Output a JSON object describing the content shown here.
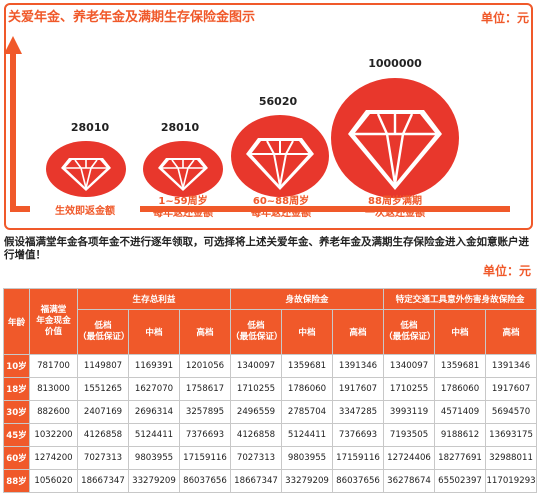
{
  "top": {
    "title": "关爱年金、养老年金及满期生存保险金图示",
    "unit": "单位：元",
    "items": [
      {
        "amount": "28010",
        "caption": "生效即返金额"
      },
      {
        "amount": "28010",
        "caption": "1~59周岁\n每年返还金额"
      },
      {
        "amount": "56020",
        "caption": "60~88周岁\n每年返还金额"
      },
      {
        "amount": "1000000",
        "caption": "88周岁满期\n一次返还金额"
      }
    ],
    "colors": {
      "accent": "#f0592a"
    }
  },
  "note": "假设福满堂年金各项年金不进行逐年领取，可选择将上述关爱年金、养老年金及满期生存保险金进入金如意账户进行增值！",
  "unit_mid": "单位：元",
  "table": {
    "h_age": "年龄",
    "h_cash": "福满堂\n年金现金\n价值",
    "h_total": "生存总利益",
    "h_death": "身故保险金",
    "h_accident": "特定交通工具意外伤害身故保险金",
    "h_low": "低档\n（最低保证）",
    "h_mid": "中档",
    "h_high": "高档",
    "rows": [
      {
        "age": "10岁",
        "cash": "781700",
        "t": [
          "1149807",
          "1169391",
          "1201056"
        ],
        "d": [
          "1340097",
          "1359681",
          "1391346"
        ],
        "a": [
          "1340097",
          "1359681",
          "1391346"
        ]
      },
      {
        "age": "18岁",
        "cash": "813000",
        "t": [
          "1551265",
          "1627070",
          "1758617"
        ],
        "d": [
          "1710255",
          "1786060",
          "1917607"
        ],
        "a": [
          "1710255",
          "1786060",
          "1917607"
        ]
      },
      {
        "age": "30岁",
        "cash": "882600",
        "t": [
          "2407169",
          "2696314",
          "3257895"
        ],
        "d": [
          "2496559",
          "2785704",
          "3347285"
        ],
        "a": [
          "3993119",
          "4571409",
          "5694570"
        ]
      },
      {
        "age": "45岁",
        "cash": "1032200",
        "t": [
          "4126858",
          "5124411",
          "7376693"
        ],
        "d": [
          "4126858",
          "5124411",
          "7376693"
        ],
        "a": [
          "7193505",
          "9188612",
          "13693175"
        ]
      },
      {
        "age": "60岁",
        "cash": "1274200",
        "t": [
          "7027313",
          "9803955",
          "17159116"
        ],
        "d": [
          "7027313",
          "9803955",
          "17159116"
        ],
        "a": [
          "12724406",
          "18277691",
          "32988011"
        ]
      },
      {
        "age": "88岁",
        "cash": "1056020",
        "t": [
          "18667347",
          "33279209",
          "86037656"
        ],
        "d": [
          "18667347",
          "33279209",
          "86037656"
        ],
        "a": [
          "36278674",
          "65502397",
          "117019293"
        ]
      }
    ]
  }
}
